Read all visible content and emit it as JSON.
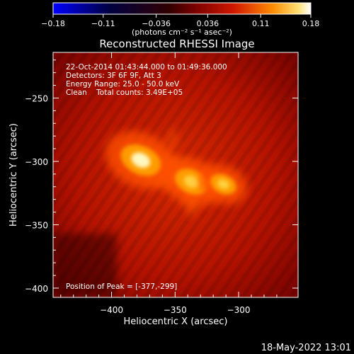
{
  "colorbar": {
    "tick_labels": [
      "−0.18",
      "−0.11",
      "−0.036",
      "0.036",
      "0.11",
      "0.18"
    ],
    "tick_values": [
      -0.18,
      -0.11,
      -0.036,
      0.036,
      0.11,
      0.18
    ],
    "range": [
      -0.18,
      0.18
    ],
    "units": "(photons cm⁻² s⁻¹ asec⁻²)"
  },
  "chart_data": {
    "type": "heatmap",
    "title": "Reconstructed RHESSI Image",
    "xlabel": "Heliocentric X (arcsec)",
    "ylabel": "Heliocentric Y (arcsec)",
    "xlim": [
      -446,
      -403
    ],
    "ylim": [
      -407,
      -214
    ],
    "xticks": [
      -400,
      -350,
      -300
    ],
    "xtick_labels": [
      "−400",
      "−350",
      "−300"
    ],
    "yticks": [
      -250,
      -300,
      -350,
      -400
    ],
    "ytick_labels": [
      "−250",
      "−300",
      "−350",
      "−400"
    ],
    "colormap": "RHESSI red-temperature",
    "sources": [
      {
        "x": -377,
        "y": -299,
        "peak": 0.18
      },
      {
        "x": -337,
        "y": -316,
        "peak": 0.14
      },
      {
        "x": -312,
        "y": -318,
        "peak": 0.1
      }
    ],
    "annotations": {
      "time_range": "22-Oct-2014 01:43:44.000 to 01:49:36.000",
      "detectors": "Detectors: 3F 6F 9F, Att 3",
      "energy_range": "Energy Range: 25.0 - 50.0 keV",
      "algorithm": "Clean    Total counts: 3.49E+05",
      "peak_position": "Position of Peak = [-377,-299]"
    }
  },
  "footer": {
    "timestamp": "18-May-2022 13:01"
  }
}
